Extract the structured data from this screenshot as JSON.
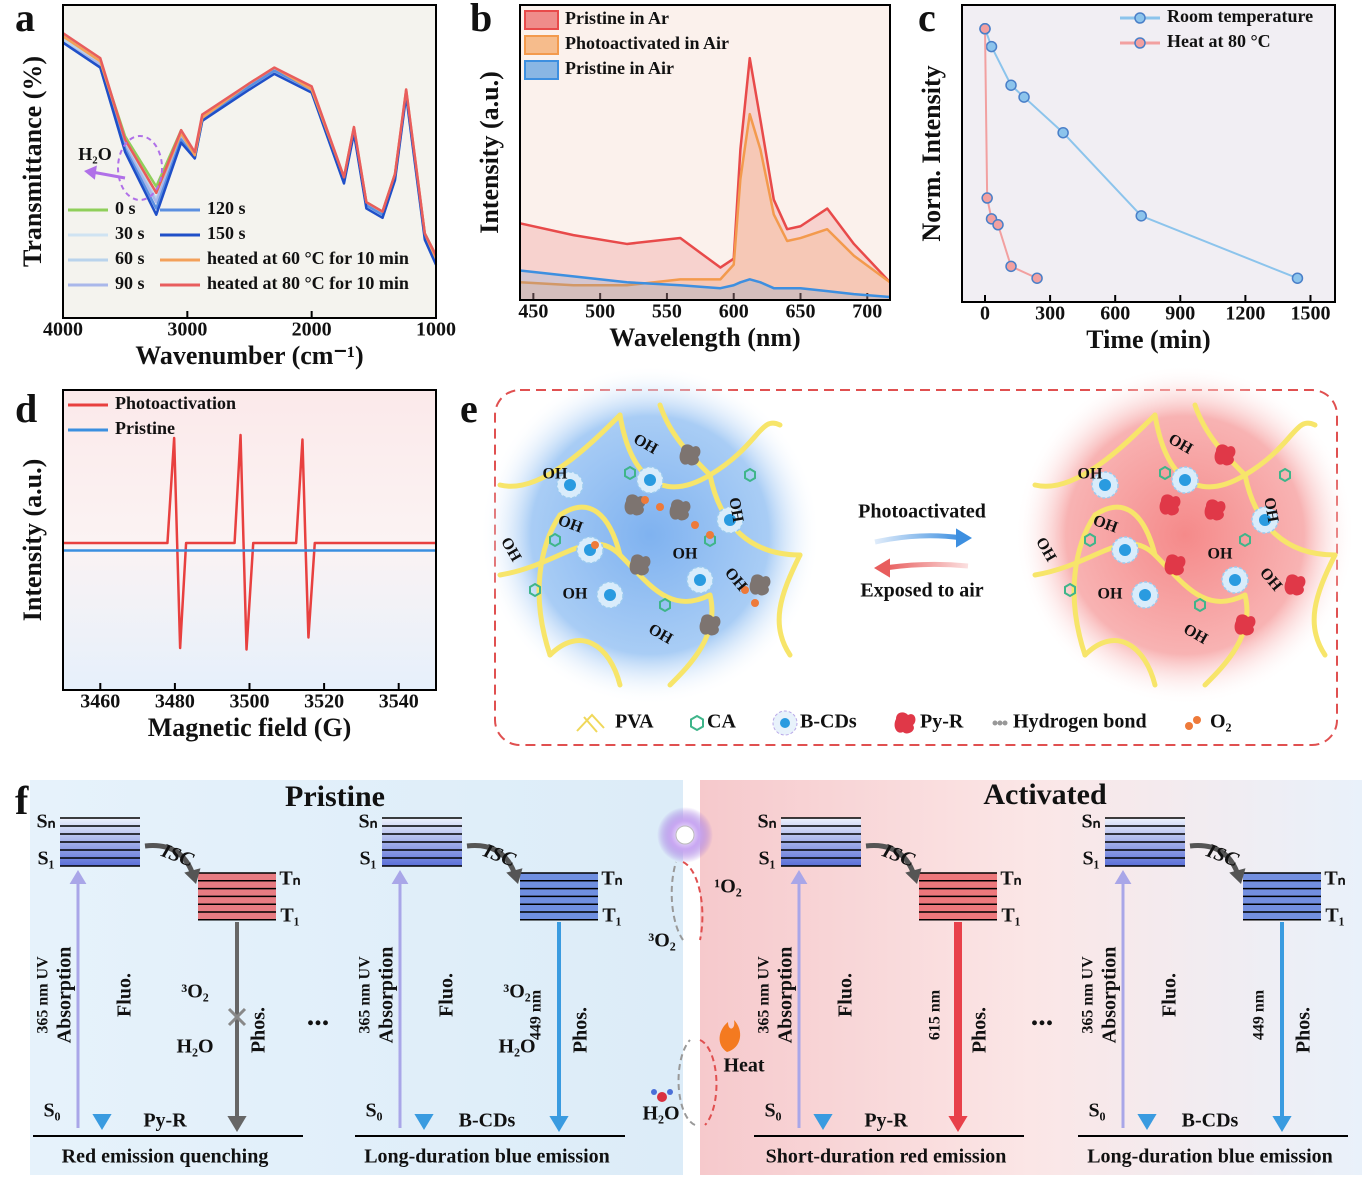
{
  "chart_data": [
    {
      "type": "line",
      "panel_label": "a",
      "xlabel": "Wavenumber (cm⁻¹)",
      "ylabel": "Transmittance (%)",
      "annotation": "H₂O",
      "x": [
        4000,
        3700,
        3500,
        3250,
        3050,
        2940,
        2880,
        2500,
        2300,
        2000,
        1740,
        1660,
        1560,
        1430,
        1330,
        1240,
        1090,
        1000
      ],
      "xlim": [
        4000,
        1000
      ],
      "xticks": [
        4000,
        3000,
        2000,
        1000
      ],
      "ylim": [
        0,
        100
      ],
      "legend": "lower left",
      "series": [
        {
          "name": "0 s",
          "color": "#8fcf5a",
          "values": [
            90,
            82,
            58,
            42,
            60,
            52,
            64,
            74,
            79,
            73,
            44,
            60,
            37,
            34,
            46,
            72,
            27,
            20
          ]
        },
        {
          "name": "30 s",
          "color": "#cfe3f2",
          "values": [
            89,
            82,
            57,
            40,
            59,
            52,
            64,
            74,
            79,
            73,
            44,
            60,
            36,
            33,
            45,
            72,
            26,
            19
          ]
        },
        {
          "name": "60 s",
          "color": "#b9d3ec",
          "values": [
            89,
            81,
            56,
            38,
            59,
            52,
            64,
            74,
            79,
            73,
            44,
            60,
            36,
            33,
            45,
            72,
            26,
            19
          ]
        },
        {
          "name": "90 s",
          "color": "#a9b7ea",
          "values": [
            88,
            81,
            55,
            37,
            58,
            52,
            64,
            74,
            79,
            73,
            44,
            60,
            36,
            33,
            45,
            72,
            26,
            18
          ]
        },
        {
          "name": "120 s",
          "color": "#5b8fe0",
          "values": [
            88,
            80,
            54,
            35,
            57,
            51,
            63,
            74,
            79,
            73,
            44,
            60,
            36,
            33,
            45,
            72,
            26,
            18
          ]
        },
        {
          "name": "150 s",
          "color": "#1f4fc8",
          "values": [
            88,
            80,
            53,
            33,
            56,
            51,
            63,
            73,
            78,
            72,
            43,
            59,
            35,
            32,
            44,
            71,
            25,
            17
          ]
        },
        {
          "name": "heated at 60 °C for 10 min",
          "color": "#f3a05a",
          "values": [
            90,
            82,
            57,
            40,
            59,
            52,
            64,
            75,
            80,
            73,
            45,
            61,
            37,
            34,
            46,
            73,
            27,
            19
          ]
        },
        {
          "name": "heated at 80 °C for 10 min",
          "color": "#e85d5d",
          "values": [
            91,
            83,
            57,
            40,
            60,
            53,
            65,
            75,
            80,
            74,
            45,
            61,
            37,
            34,
            46,
            73,
            27,
            20
          ]
        }
      ]
    },
    {
      "type": "line",
      "panel_label": "b",
      "xlabel": "Wavelength (nm)",
      "ylabel": "Intensity (a.u.)",
      "fill_area": true,
      "x": [
        440,
        480,
        520,
        560,
        590,
        600,
        605,
        612,
        620,
        630,
        640,
        650,
        670,
        690,
        717
      ],
      "xlim": [
        440,
        717
      ],
      "xticks": [
        450,
        500,
        550,
        600,
        650,
        700
      ],
      "ylim": [
        0,
        100
      ],
      "legend": "upper left",
      "series": [
        {
          "name": "Pristine in Ar",
          "color": "#e84a4a",
          "values": [
            26,
            22,
            19,
            21,
            11,
            14,
            51,
            82,
            61,
            34,
            24,
            25,
            31,
            19,
            6
          ]
        },
        {
          "name": "Photoactivated in Air",
          "color": "#f39a4d",
          "values": [
            6,
            5,
            5,
            7,
            7,
            12,
            41,
            63,
            51,
            29,
            20,
            21,
            24,
            15,
            6
          ]
        },
        {
          "name": "Pristine in Air",
          "color": "#3d8fe0",
          "values": [
            10,
            8,
            6,
            5,
            4,
            5,
            6,
            7,
            6,
            4,
            4,
            4,
            3,
            2,
            1
          ]
        }
      ]
    },
    {
      "type": "line",
      "panel_label": "c",
      "xlabel": "Time (min)",
      "ylabel": "Norm. Intensity",
      "markers": true,
      "xlim": [
        -106,
        1613
      ],
      "xticks": [
        0,
        300,
        600,
        900,
        1200,
        1500
      ],
      "ylim": [
        0,
        1
      ],
      "legend": "upper right",
      "series": [
        {
          "name": "Room temperature",
          "color": "#8cc4ec",
          "x": [
            0,
            30,
            120,
            180,
            360,
            720,
            1440
          ],
          "values": [
            0.92,
            0.86,
            0.73,
            0.69,
            0.57,
            0.29,
            0.08
          ]
        },
        {
          "name": "Heat at 80 °C",
          "color": "#f2a0a0",
          "x": [
            0,
            10,
            30,
            60,
            120,
            240
          ],
          "values": [
            0.92,
            0.35,
            0.28,
            0.26,
            0.12,
            0.08
          ]
        }
      ]
    },
    {
      "type": "line",
      "panel_label": "d",
      "xlabel": "Magnetic field (G)",
      "ylabel": "Intensity (a.u.)",
      "xlim": [
        3450,
        3550
      ],
      "xticks": [
        3460,
        3480,
        3500,
        3520,
        3540
      ],
      "ylim": [
        -10,
        10
      ],
      "legend": "upper left",
      "series": [
        {
          "name": "Photoactivation",
          "color": "#e8403f",
          "x": [
            3450,
            3478,
            3479.8,
            3480.6,
            3481.4,
            3483,
            3496,
            3497.6,
            3498.4,
            3499.2,
            3501,
            3512.5,
            3514.2,
            3515,
            3515.8,
            3517.5,
            3550
          ],
          "values": [
            -0.2,
            -0.2,
            6.8,
            -0.2,
            -7.2,
            -0.2,
            -0.2,
            7.0,
            -0.2,
            -7.3,
            -0.2,
            -0.2,
            6.7,
            -0.2,
            -6.5,
            -0.2,
            -0.2
          ]
        },
        {
          "name": "Pristine",
          "color": "#3a8fe0",
          "x": [
            3450,
            3550
          ],
          "values": [
            -0.7,
            -0.7
          ]
        }
      ]
    }
  ],
  "panel_e": {
    "label": "e",
    "forward": "Photoactivated",
    "backward": "Exposed to air",
    "oh": "OH",
    "legend": [
      "PVA",
      "CA",
      "B-CDs",
      "Py-R",
      "Hydrogen bond",
      "O₂"
    ]
  },
  "panel_f": {
    "label": "f",
    "left_title": "Pristine",
    "right_title": "Activated",
    "ellipsis": "...",
    "levels": {
      "sn": "Sₙ",
      "s1": "S₁",
      "tn": "Tₙ",
      "t1": "T₁",
      "s0": "S₀"
    },
    "isc": "ISC",
    "uv": "365 nm UV",
    "absorption": "Absorption",
    "fluo": "Fluo.",
    "phos": "Phos.",
    "diagrams": [
      {
        "molecule": "Py-R",
        "caption": "Red emission quenching",
        "quencher": "³O₂",
        "water": "H₂O",
        "quenched": true,
        "t_color": "#e8545a",
        "phos_color": "#666666"
      },
      {
        "molecule": "B-CDs",
        "caption": "Long-duration blue emission",
        "quencher": "³O₂",
        "water": "H₂O",
        "emission": "449 nm",
        "t_color": "#4a6fd8",
        "phos_color": "#3a9be0"
      },
      {
        "molecule": "Py-R",
        "caption": "Short-duration red emission",
        "emission": "615 nm",
        "t_color": "#e8545a",
        "phos_color": "#e8404a"
      },
      {
        "molecule": "B-CDs",
        "caption": "Long-duration blue emission",
        "emission": "449 nm",
        "t_color": "#4a6fd8",
        "phos_color": "#3a9be0"
      }
    ],
    "cycle": {
      "singlet": "¹O₂",
      "triplet": "³O₂",
      "heat": "Heat",
      "water": "H₂O"
    }
  }
}
